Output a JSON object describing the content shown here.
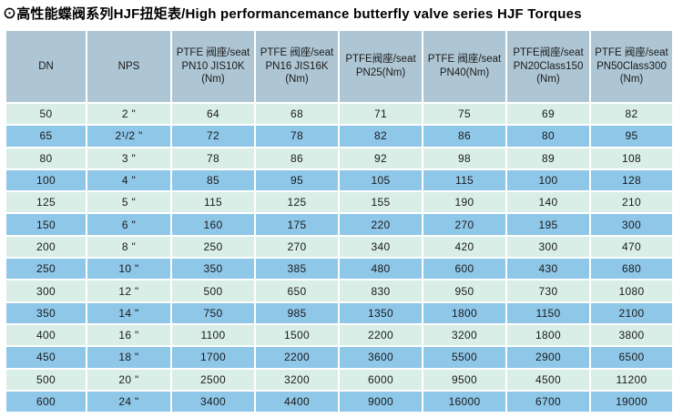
{
  "title": "⊙高性能蝶阀系列HJF扭矩表/High performancemance butterfly valve series HJF Torques",
  "colors": {
    "header_bg": "#aec6d4",
    "row_light": "#d9eee7",
    "row_blue": "#8fc7e9",
    "text": "#1a1a1a",
    "page_bg": "#ffffff"
  },
  "table": {
    "headers": [
      "DN",
      "NPS",
      "PTFE 阀座/seat\nPN10 JIS10K\n(Nm)",
      "PTFE 阀座/seat\nPN16 JIS16K\n(Nm)",
      "PTFE阀座/seat\nPN25(Nm)",
      "PTFE 阀座/seat\nPN40(Nm)",
      "PTFE阀座/seat\nPN20Class150\n(Nm)",
      "PTFE 阀座/seat\nPN50Class300\n(Nm)"
    ],
    "rows": [
      [
        "50",
        "2 \"",
        "64",
        "68",
        "71",
        "75",
        "69",
        "82"
      ],
      [
        "65",
        "2¹/2 \"",
        "72",
        "78",
        "82",
        "86",
        "80",
        "95"
      ],
      [
        "80",
        "3 \"",
        "78",
        "86",
        "92",
        "98",
        "89",
        "108"
      ],
      [
        "100",
        "4 \"",
        "85",
        "95",
        "105",
        "115",
        "100",
        "128"
      ],
      [
        "125",
        "5 \"",
        "115",
        "125",
        "155",
        "190",
        "140",
        "210"
      ],
      [
        "150",
        "6 \"",
        "160",
        "175",
        "220",
        "270",
        "195",
        "300"
      ],
      [
        "200",
        "8 \"",
        "250",
        "270",
        "340",
        "420",
        "300",
        "470"
      ],
      [
        "250",
        "10 \"",
        "350",
        "385",
        "480",
        "600",
        "430",
        "680"
      ],
      [
        "300",
        "12 \"",
        "500",
        "650",
        "830",
        "950",
        "730",
        "1080"
      ],
      [
        "350",
        "14 \"",
        "750",
        "985",
        "1350",
        "1800",
        "1150",
        "2100"
      ],
      [
        "400",
        "16 \"",
        "1100",
        "1500",
        "2200",
        "3200",
        "1800",
        "3800"
      ],
      [
        "450",
        "18 \"",
        "1700",
        "2200",
        "3600",
        "5500",
        "2900",
        "6500"
      ],
      [
        "500",
        "20 \"",
        "2500",
        "3200",
        "6000",
        "9500",
        "4500",
        "11200"
      ],
      [
        "600",
        "24 \"",
        "3400",
        "4400",
        "9000",
        "16000",
        "6700",
        "19000"
      ]
    ]
  }
}
